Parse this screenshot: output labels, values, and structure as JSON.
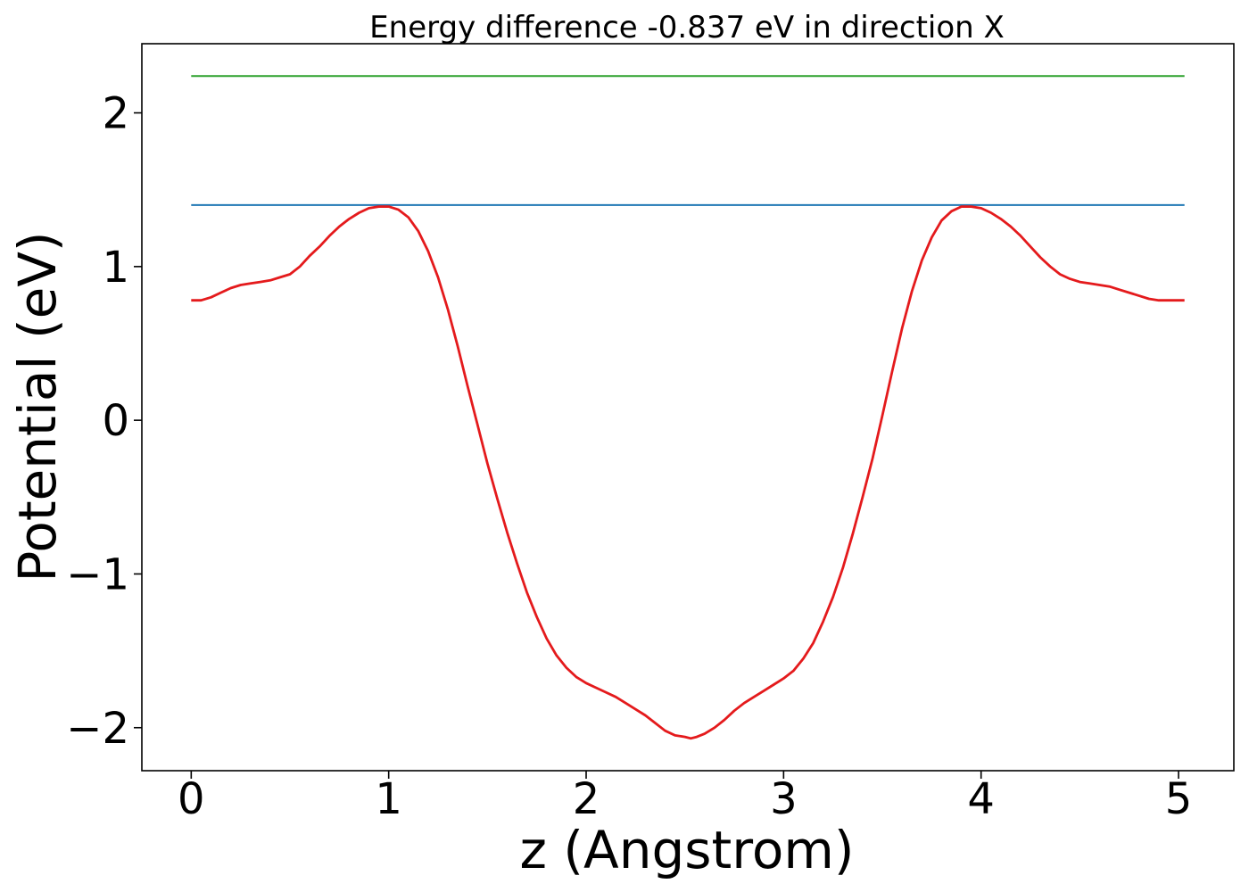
{
  "chart_data": {
    "type": "line",
    "title": "Energy difference -0.837 eV in direction X",
    "xlabel": "z (Angstrom)",
    "ylabel": "Potential (eV)",
    "xlim": [
      -0.25,
      5.28
    ],
    "ylim": [
      -2.28,
      2.45
    ],
    "xticks": [
      0,
      1,
      2,
      3,
      4,
      5
    ],
    "yticks": [
      -2,
      -1,
      0,
      1,
      2
    ],
    "xtick_labels": [
      "0",
      "1",
      "2",
      "3",
      "4",
      "5"
    ],
    "ytick_labels": [
      "−2",
      "−1",
      "0",
      "1",
      "2"
    ],
    "grid": false,
    "series": [
      {
        "color": "#2ca02c",
        "x": [
          0,
          5.03
        ],
        "y": [
          2.24,
          2.24
        ]
      },
      {
        "color": "#1f77b4",
        "x": [
          0,
          5.03
        ],
        "y": [
          1.4,
          1.4
        ]
      },
      {
        "color": "#e41a1c",
        "x": [
          0.0,
          0.05,
          0.1,
          0.15,
          0.2,
          0.25,
          0.3,
          0.35,
          0.4,
          0.45,
          0.5,
          0.55,
          0.6,
          0.65,
          0.7,
          0.75,
          0.8,
          0.85,
          0.9,
          0.95,
          1.0,
          1.05,
          1.1,
          1.15,
          1.2,
          1.25,
          1.3,
          1.35,
          1.4,
          1.45,
          1.5,
          1.55,
          1.6,
          1.65,
          1.7,
          1.75,
          1.8,
          1.85,
          1.9,
          1.95,
          2.0,
          2.05,
          2.1,
          2.15,
          2.2,
          2.25,
          2.3,
          2.35,
          2.4,
          2.45,
          2.5,
          2.53,
          2.56,
          2.6,
          2.65,
          2.7,
          2.75,
          2.8,
          2.85,
          2.9,
          2.95,
          3.0,
          3.05,
          3.1,
          3.15,
          3.2,
          3.25,
          3.3,
          3.35,
          3.4,
          3.45,
          3.5,
          3.55,
          3.6,
          3.65,
          3.7,
          3.75,
          3.8,
          3.85,
          3.9,
          3.95,
          4.0,
          4.05,
          4.1,
          4.15,
          4.2,
          4.25,
          4.3,
          4.35,
          4.4,
          4.45,
          4.5,
          4.55,
          4.6,
          4.65,
          4.7,
          4.75,
          4.8,
          4.85,
          4.9,
          4.95,
          5.03
        ],
        "y": [
          0.78,
          0.78,
          0.8,
          0.83,
          0.86,
          0.88,
          0.89,
          0.9,
          0.91,
          0.93,
          0.95,
          1.0,
          1.07,
          1.13,
          1.2,
          1.26,
          1.31,
          1.35,
          1.38,
          1.39,
          1.39,
          1.37,
          1.32,
          1.23,
          1.1,
          0.93,
          0.72,
          0.48,
          0.22,
          -0.03,
          -0.28,
          -0.51,
          -0.73,
          -0.93,
          -1.12,
          -1.28,
          -1.42,
          -1.53,
          -1.61,
          -1.67,
          -1.71,
          -1.74,
          -1.77,
          -1.8,
          -1.84,
          -1.88,
          -1.92,
          -1.97,
          -2.02,
          -2.05,
          -2.06,
          -2.07,
          -2.06,
          -2.04,
          -2.0,
          -1.95,
          -1.89,
          -1.84,
          -1.8,
          -1.76,
          -1.72,
          -1.68,
          -1.63,
          -1.55,
          -1.45,
          -1.31,
          -1.15,
          -0.96,
          -0.74,
          -0.5,
          -0.25,
          0.03,
          0.32,
          0.6,
          0.84,
          1.04,
          1.19,
          1.3,
          1.36,
          1.39,
          1.39,
          1.38,
          1.35,
          1.31,
          1.26,
          1.2,
          1.13,
          1.06,
          1.0,
          0.95,
          0.92,
          0.9,
          0.89,
          0.88,
          0.87,
          0.85,
          0.83,
          0.81,
          0.79,
          0.78,
          0.78,
          0.78
        ]
      }
    ]
  }
}
